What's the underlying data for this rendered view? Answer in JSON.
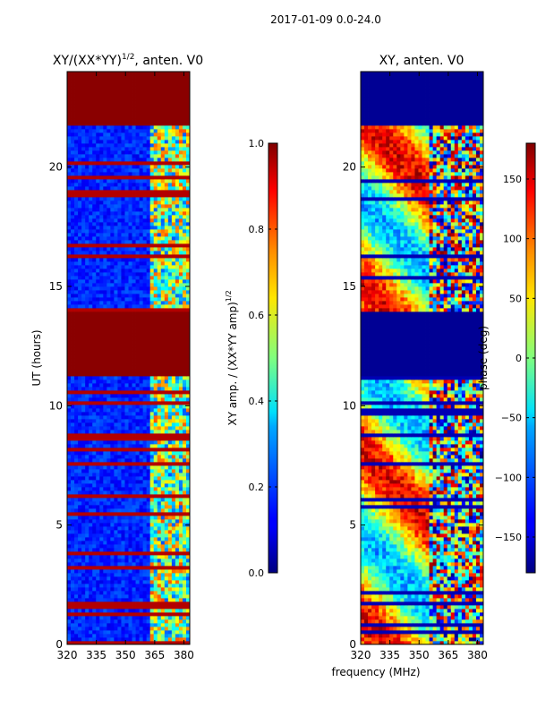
{
  "suptitle": "2017-01-09 0.0-24.0",
  "chart_data": [
    {
      "type": "heatmap",
      "title": "XY/(XX*YY)",
      "title_exp": "1/2",
      "title_suffix": ", anten. V0",
      "xlabel": "frequency (MHz)",
      "ylabel": "UT (hours)",
      "xlim": [
        320,
        383
      ],
      "ylim": [
        0,
        24
      ],
      "xticks": [
        "320",
        "335",
        "350",
        "365",
        "380"
      ],
      "xtick_values": [
        320,
        335,
        350,
        365,
        380
      ],
      "yticks": [
        "0",
        "5",
        "10",
        "15",
        "20"
      ],
      "ytick_values": [
        0,
        5,
        10,
        15,
        20
      ],
      "colorbar": {
        "label": "XY amp. / (XX*YY amp)",
        "label_exp": "1/2",
        "range": [
          0.0,
          1.0
        ],
        "ticks": [
          "0.0",
          "0.2",
          "0.4",
          "0.6",
          "0.8",
          "1.0"
        ],
        "tick_values": [
          0.0,
          0.2,
          0.4,
          0.6,
          0.8,
          1.0
        ]
      },
      "flagged_ut_ranges": [
        [
          11.2,
          13.9
        ],
        [
          21.8,
          24.0
        ]
      ]
    },
    {
      "type": "heatmap",
      "title": "XY, anten. V0",
      "xlim": [
        320,
        383
      ],
      "ylim": [
        0,
        24
      ],
      "xticks": [
        "320",
        "335",
        "350",
        "365",
        "380"
      ],
      "xtick_values": [
        320,
        335,
        350,
        365,
        380
      ],
      "yticks": [
        "0",
        "5",
        "10",
        "15",
        "20"
      ],
      "ytick_values": [
        0,
        5,
        10,
        15,
        20
      ],
      "colorbar": {
        "label": "phase (deg)",
        "range": [
          -180,
          180
        ],
        "ticks": [
          "−150",
          "−100",
          "−50",
          "0",
          "50",
          "100",
          "150"
        ],
        "tick_values": [
          -150,
          -100,
          -50,
          0,
          50,
          100,
          150
        ]
      },
      "flagged_ut_ranges": [
        [
          11.2,
          13.9
        ],
        [
          21.8,
          24.0
        ]
      ]
    }
  ]
}
